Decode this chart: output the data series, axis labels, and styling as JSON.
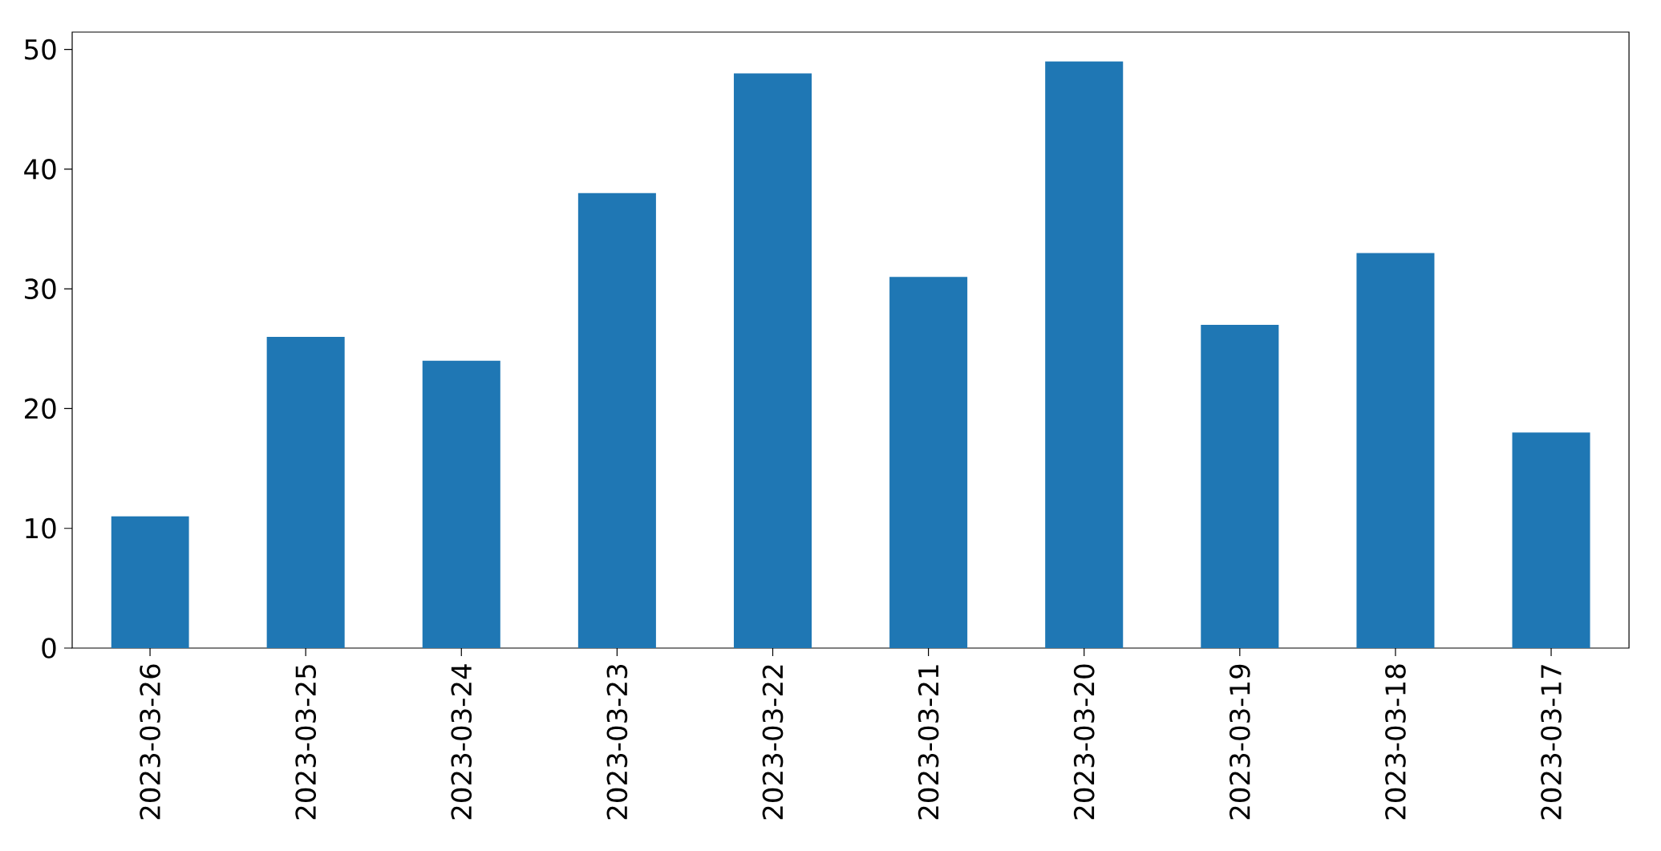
{
  "chart_data": {
    "type": "bar",
    "categories": [
      "2023-03-26",
      "2023-03-25",
      "2023-03-24",
      "2023-03-23",
      "2023-03-22",
      "2023-03-21",
      "2023-03-20",
      "2023-03-19",
      "2023-03-18",
      "2023-03-17"
    ],
    "values": [
      11,
      26,
      24,
      38,
      48,
      31,
      49,
      27,
      33,
      18
    ],
    "color": "#1f77b4",
    "ylim": [
      0,
      51.45
    ],
    "yticks": [
      0,
      10,
      20,
      30,
      40,
      50
    ],
    "grid": false
  }
}
